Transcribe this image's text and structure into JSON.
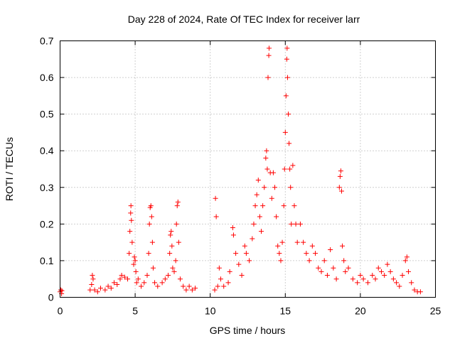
{
  "chart_data": {
    "type": "scatter",
    "title": "Day 228 of 2024, Rate Of TEC Index for receiver larr",
    "xlabel": "GPS time / hours",
    "ylabel": "ROTI / TECUs",
    "xlim": [
      0,
      25
    ],
    "ylim": [
      0,
      0.7
    ],
    "x_ticks": [
      "0",
      "5",
      "10",
      "15",
      "20",
      "25"
    ],
    "y_ticks": [
      "0",
      "0.1",
      "0.2",
      "0.3",
      "0.4",
      "0.5",
      "0.6",
      "0.7"
    ],
    "grid": true,
    "marker": "+",
    "color": "#ff0000",
    "points": [
      [
        0.0,
        0.015
      ],
      [
        0.05,
        0.02
      ],
      [
        0.1,
        0.01
      ],
      [
        0.12,
        0.018
      ],
      [
        2.0,
        0.02
      ],
      [
        2.1,
        0.035
      ],
      [
        2.15,
        0.06
      ],
      [
        2.2,
        0.05
      ],
      [
        2.3,
        0.02
      ],
      [
        2.5,
        0.015
      ],
      [
        2.7,
        0.025
      ],
      [
        3.0,
        0.02
      ],
      [
        3.2,
        0.03
      ],
      [
        3.4,
        0.025
      ],
      [
        3.6,
        0.04
      ],
      [
        3.8,
        0.035
      ],
      [
        4.0,
        0.05
      ],
      [
        4.1,
        0.06
      ],
      [
        4.3,
        0.055
      ],
      [
        4.5,
        0.05
      ],
      [
        4.6,
        0.12
      ],
      [
        4.65,
        0.18
      ],
      [
        4.7,
        0.23
      ],
      [
        4.72,
        0.25
      ],
      [
        4.75,
        0.21
      ],
      [
        4.8,
        0.15
      ],
      [
        4.9,
        0.09
      ],
      [
        4.95,
        0.11
      ],
      [
        5.0,
        0.1
      ],
      [
        5.05,
        0.07
      ],
      [
        5.1,
        0.04
      ],
      [
        5.2,
        0.05
      ],
      [
        5.4,
        0.03
      ],
      [
        5.6,
        0.04
      ],
      [
        5.8,
        0.06
      ],
      [
        5.9,
        0.12
      ],
      [
        5.95,
        0.2
      ],
      [
        6.0,
        0.245
      ],
      [
        6.05,
        0.25
      ],
      [
        6.1,
        0.22
      ],
      [
        6.15,
        0.15
      ],
      [
        6.2,
        0.08
      ],
      [
        6.3,
        0.04
      ],
      [
        6.5,
        0.03
      ],
      [
        6.8,
        0.04
      ],
      [
        7.0,
        0.05
      ],
      [
        7.2,
        0.06
      ],
      [
        7.3,
        0.12
      ],
      [
        7.35,
        0.17
      ],
      [
        7.4,
        0.18
      ],
      [
        7.45,
        0.14
      ],
      [
        7.5,
        0.08
      ],
      [
        7.6,
        0.07
      ],
      [
        7.7,
        0.1
      ],
      [
        7.75,
        0.2
      ],
      [
        7.8,
        0.25
      ],
      [
        7.85,
        0.26
      ],
      [
        7.9,
        0.15
      ],
      [
        8.0,
        0.05
      ],
      [
        8.2,
        0.03
      ],
      [
        8.4,
        0.02
      ],
      [
        8.6,
        0.03
      ],
      [
        8.8,
        0.02
      ],
      [
        9.0,
        0.025
      ],
      [
        10.3,
        0.02
      ],
      [
        10.35,
        0.27
      ],
      [
        10.4,
        0.22
      ],
      [
        10.5,
        0.03
      ],
      [
        10.6,
        0.08
      ],
      [
        10.7,
        0.05
      ],
      [
        10.9,
        0.03
      ],
      [
        11.2,
        0.04
      ],
      [
        11.3,
        0.07
      ],
      [
        11.5,
        0.19
      ],
      [
        11.55,
        0.17
      ],
      [
        11.7,
        0.12
      ],
      [
        11.9,
        0.09
      ],
      [
        12.1,
        0.06
      ],
      [
        12.3,
        0.14
      ],
      [
        12.4,
        0.12
      ],
      [
        12.6,
        0.1
      ],
      [
        12.8,
        0.16
      ],
      [
        12.9,
        0.2
      ],
      [
        13.0,
        0.25
      ],
      [
        13.1,
        0.28
      ],
      [
        13.2,
        0.32
      ],
      [
        13.3,
        0.22
      ],
      [
        13.4,
        0.18
      ],
      [
        13.5,
        0.25
      ],
      [
        13.6,
        0.3
      ],
      [
        13.7,
        0.38
      ],
      [
        13.75,
        0.4
      ],
      [
        13.8,
        0.35
      ],
      [
        13.85,
        0.6
      ],
      [
        13.9,
        0.66
      ],
      [
        13.92,
        0.68
      ],
      [
        14.0,
        0.34
      ],
      [
        14.1,
        0.27
      ],
      [
        14.2,
        0.34
      ],
      [
        14.3,
        0.3
      ],
      [
        14.4,
        0.22
      ],
      [
        14.5,
        0.14
      ],
      [
        14.6,
        0.12
      ],
      [
        14.7,
        0.1
      ],
      [
        14.8,
        0.15
      ],
      [
        14.9,
        0.25
      ],
      [
        14.95,
        0.35
      ],
      [
        15.0,
        0.45
      ],
      [
        15.05,
        0.55
      ],
      [
        15.1,
        0.65
      ],
      [
        15.12,
        0.68
      ],
      [
        15.15,
        0.6
      ],
      [
        15.2,
        0.5
      ],
      [
        15.25,
        0.42
      ],
      [
        15.3,
        0.35
      ],
      [
        15.35,
        0.3
      ],
      [
        15.4,
        0.2
      ],
      [
        15.5,
        0.36
      ],
      [
        15.6,
        0.25
      ],
      [
        15.7,
        0.2
      ],
      [
        15.8,
        0.15
      ],
      [
        16.0,
        0.2
      ],
      [
        16.2,
        0.15
      ],
      [
        16.4,
        0.12
      ],
      [
        16.6,
        0.1
      ],
      [
        16.8,
        0.14
      ],
      [
        17.0,
        0.12
      ],
      [
        17.2,
        0.08
      ],
      [
        17.4,
        0.07
      ],
      [
        17.6,
        0.1
      ],
      [
        17.8,
        0.06
      ],
      [
        18.0,
        0.13
      ],
      [
        18.2,
        0.08
      ],
      [
        18.4,
        0.05
      ],
      [
        18.6,
        0.3
      ],
      [
        18.65,
        0.33
      ],
      [
        18.7,
        0.345
      ],
      [
        18.75,
        0.29
      ],
      [
        18.8,
        0.14
      ],
      [
        18.9,
        0.1
      ],
      [
        19.0,
        0.07
      ],
      [
        19.2,
        0.08
      ],
      [
        19.5,
        0.05
      ],
      [
        19.8,
        0.04
      ],
      [
        20.0,
        0.06
      ],
      [
        20.2,
        0.05
      ],
      [
        20.5,
        0.04
      ],
      [
        20.8,
        0.06
      ],
      [
        21.0,
        0.05
      ],
      [
        21.2,
        0.08
      ],
      [
        21.4,
        0.07
      ],
      [
        21.6,
        0.06
      ],
      [
        21.8,
        0.09
      ],
      [
        22.0,
        0.07
      ],
      [
        22.2,
        0.05
      ],
      [
        22.4,
        0.04
      ],
      [
        22.6,
        0.03
      ],
      [
        22.8,
        0.06
      ],
      [
        23.0,
        0.1
      ],
      [
        23.1,
        0.11
      ],
      [
        23.2,
        0.07
      ],
      [
        23.4,
        0.04
      ],
      [
        23.6,
        0.02
      ],
      [
        23.8,
        0.015
      ],
      [
        24.0,
        0.015
      ]
    ]
  }
}
